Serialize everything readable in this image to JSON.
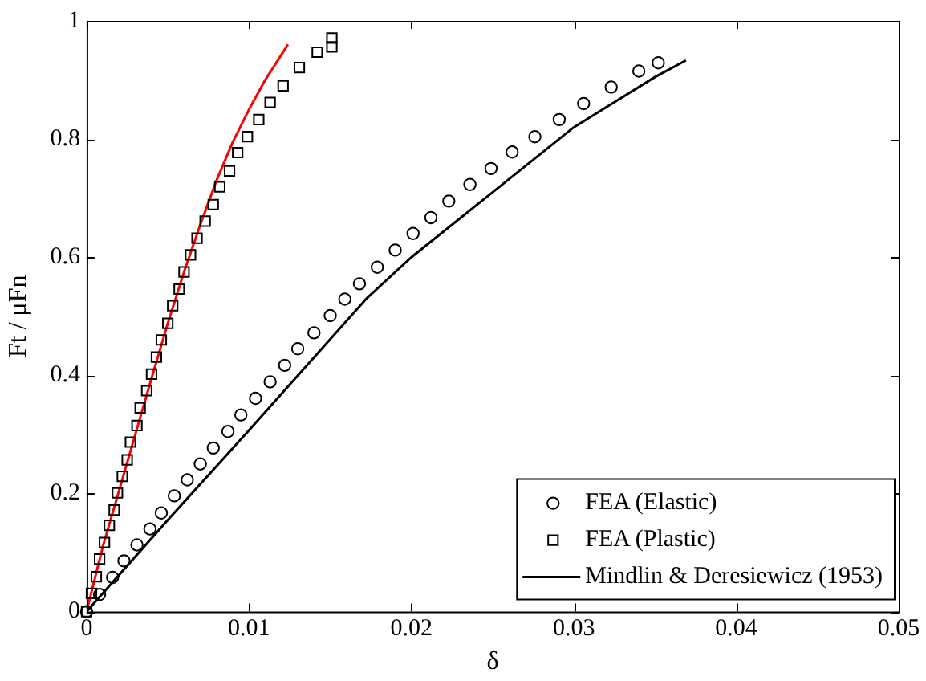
{
  "chart_data": {
    "type": "scatter",
    "xlabel": "δ",
    "ylabel": "Ft / μFn",
    "xlim": [
      0,
      0.05
    ],
    "xticks": [
      0,
      0.01,
      0.02,
      0.03,
      0.04,
      0.05
    ],
    "ylim": [
      0,
      1
    ],
    "yticks": [
      0,
      0.2,
      0.4,
      0.6,
      0.8,
      1
    ],
    "grid": false,
    "legend": "bottom right",
    "series": [
      {
        "name": "FEA (Elastic)",
        "marker": "circle",
        "color": "#000000",
        "x": [
          0.0008,
          0.0016,
          0.0023,
          0.0031,
          0.0039,
          0.0046,
          0.0054,
          0.0062,
          0.007,
          0.0078,
          0.0087,
          0.0095,
          0.0104,
          0.0113,
          0.0122,
          0.013,
          0.014,
          0.015,
          0.0159,
          0.0168,
          0.0179,
          0.019,
          0.0201,
          0.0212,
          0.0223,
          0.0236,
          0.0249,
          0.0262,
          0.0276,
          0.0291,
          0.0306,
          0.0323,
          0.034,
          0.0352,
          0
        ],
        "values": [
          0.029,
          0.058,
          0.086,
          0.113,
          0.14,
          0.167,
          0.196,
          0.223,
          0.25,
          0.277,
          0.305,
          0.333,
          0.361,
          0.389,
          0.417,
          0.445,
          0.472,
          0.501,
          0.529,
          0.555,
          0.583,
          0.612,
          0.64,
          0.667,
          0.695,
          0.723,
          0.75,
          0.778,
          0.804,
          0.833,
          0.86,
          0.888,
          0.915,
          0.929,
          0
        ]
      },
      {
        "name": "FEA (Plastic)",
        "marker": "square",
        "color": "#000000",
        "x": [
          0.0003,
          0.0006,
          0.0008,
          0.0011,
          0.0014,
          0.0017,
          0.0019,
          0.0022,
          0.0025,
          0.0027,
          0.0031,
          0.0033,
          0.0037,
          0.004,
          0.0043,
          0.0046,
          0.005,
          0.0053,
          0.0057,
          0.006,
          0.0064,
          0.0068,
          0.0073,
          0.0078,
          0.0082,
          0.0088,
          0.0093,
          0.0099,
          0.0106,
          0.0113,
          0.0121,
          0.0131,
          0.0142,
          0.0151,
          0.0151,
          0
        ],
        "values": [
          0.031,
          0.059,
          0.089,
          0.117,
          0.146,
          0.172,
          0.201,
          0.229,
          0.257,
          0.287,
          0.315,
          0.345,
          0.374,
          0.402,
          0.431,
          0.46,
          0.488,
          0.518,
          0.546,
          0.575,
          0.604,
          0.632,
          0.661,
          0.689,
          0.719,
          0.746,
          0.777,
          0.804,
          0.833,
          0.862,
          0.89,
          0.921,
          0.947,
          0.956,
          0.971,
          0
        ]
      },
      {
        "name": "Mindlin & Deresiewicz (1953)",
        "type": "line",
        "marker": "none",
        "line_style": "solid",
        "color": "#000000",
        "x": [
          0,
          0.005,
          0.01,
          0.0172,
          0.02,
          0.025,
          0.03,
          0.035,
          0.0369
        ],
        "values": [
          0,
          0.155,
          0.307,
          0.529,
          0.6,
          0.71,
          0.82,
          0.905,
          0.933
        ]
      },
      {
        "type": "line",
        "marker": "none",
        "line_style": "solid",
        "color": "#ff0000",
        "x": [
          0,
          0.001,
          0.002,
          0.003,
          0.004,
          0.005,
          0.006,
          0.007,
          0.008,
          0.009,
          0.01,
          0.011,
          0.0124
        ],
        "values": [
          0,
          0.11,
          0.205,
          0.3,
          0.395,
          0.488,
          0.575,
          0.655,
          0.73,
          0.795,
          0.85,
          0.9,
          0.96
        ]
      }
    ]
  }
}
